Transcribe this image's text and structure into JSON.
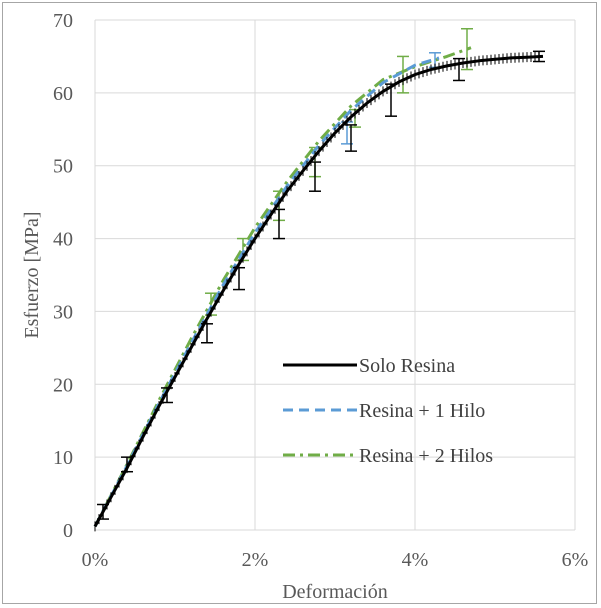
{
  "chart_data": {
    "type": "line",
    "xlabel": "Deformación",
    "ylabel": "Esfuerzo  [MPa]",
    "xlim": [
      0,
      0.06
    ],
    "ylim": [
      0,
      70
    ],
    "x_ticks": [
      "0%",
      "2%",
      "4%",
      "6%"
    ],
    "x_tick_values": [
      0,
      0.02,
      0.04,
      0.06
    ],
    "y_ticks": [
      "0",
      "10",
      "20",
      "30",
      "40",
      "50",
      "60",
      "70"
    ],
    "y_tick_values": [
      0,
      10,
      20,
      30,
      40,
      50,
      60,
      70
    ],
    "grid": true,
    "legend_position": "bottom-right",
    "series": [
      {
        "name": "Solo Resina",
        "color": "#000000",
        "style": "solid",
        "x": [
          0.0,
          0.002,
          0.004,
          0.006,
          0.008,
          0.01,
          0.012,
          0.014,
          0.016,
          0.018,
          0.02,
          0.022,
          0.024,
          0.026,
          0.028,
          0.03,
          0.032,
          0.034,
          0.036,
          0.038,
          0.04,
          0.042,
          0.044,
          0.046,
          0.048,
          0.05,
          0.052,
          0.054,
          0.056
        ],
        "y": [
          0.5,
          4.5,
          8.5,
          12.8,
          17.0,
          21.0,
          25.0,
          29.0,
          32.8,
          36.5,
          40.0,
          43.3,
          46.5,
          49.3,
          52.0,
          54.5,
          56.7,
          58.6,
          60.2,
          61.5,
          62.5,
          63.2,
          63.7,
          64.1,
          64.4,
          64.6,
          64.8,
          64.9,
          65.0
        ],
        "error_bars": [
          {
            "x": 0.001,
            "y": 2.5,
            "err": 1.0
          },
          {
            "x": 0.004,
            "y": 9.0,
            "err": 1.0
          },
          {
            "x": 0.009,
            "y": 18.5,
            "err": 1.0
          },
          {
            "x": 0.014,
            "y": 27.0,
            "err": 1.3
          },
          {
            "x": 0.018,
            "y": 34.5,
            "err": 1.5
          },
          {
            "x": 0.023,
            "y": 42.0,
            "err": 2.0
          },
          {
            "x": 0.0275,
            "y": 48.5,
            "err": 2.0
          },
          {
            "x": 0.032,
            "y": 53.8,
            "err": 1.8
          },
          {
            "x": 0.037,
            "y": 59.0,
            "err": 2.2
          },
          {
            "x": 0.0455,
            "y": 63.2,
            "err": 1.5
          },
          {
            "x": 0.0555,
            "y": 65.0,
            "err": 0.7
          }
        ]
      },
      {
        "name": "Resina + 1 Hilo",
        "color": "#5b9bd5",
        "style": "dash",
        "x": [
          0.0,
          0.004,
          0.008,
          0.012,
          0.016,
          0.02,
          0.024,
          0.028,
          0.032,
          0.036,
          0.04,
          0.043
        ],
        "y": [
          0.5,
          8.8,
          17.4,
          25.6,
          33.6,
          40.8,
          47.2,
          52.8,
          57.6,
          61.4,
          63.8,
          64.8
        ],
        "error_bars": [
          {
            "x": 0.0425,
            "y": 64.5,
            "err": 1.0
          },
          {
            "x": 0.0315,
            "y": 54.5,
            "err": 1.5
          }
        ]
      },
      {
        "name": "Resina + 2 Hilos",
        "color": "#70ad47",
        "style": "dashdot",
        "x": [
          0.0,
          0.004,
          0.008,
          0.012,
          0.016,
          0.02,
          0.024,
          0.028,
          0.032,
          0.036,
          0.04,
          0.044,
          0.047
        ],
        "y": [
          0.5,
          9.0,
          17.8,
          26.2,
          34.2,
          41.5,
          47.8,
          53.4,
          58.2,
          61.8,
          63.6,
          65.0,
          66.2
        ],
        "error_bars": [
          {
            "x": 0.0465,
            "y": 66.0,
            "err": 2.8
          },
          {
            "x": 0.0385,
            "y": 62.5,
            "err": 2.5
          },
          {
            "x": 0.0325,
            "y": 56.5,
            "err": 1.2
          },
          {
            "x": 0.0275,
            "y": 50.5,
            "err": 2.0
          },
          {
            "x": 0.023,
            "y": 44.5,
            "err": 2.0
          },
          {
            "x": 0.0185,
            "y": 38.5,
            "err": 1.5
          },
          {
            "x": 0.0145,
            "y": 31.0,
            "err": 1.5
          }
        ]
      }
    ]
  }
}
